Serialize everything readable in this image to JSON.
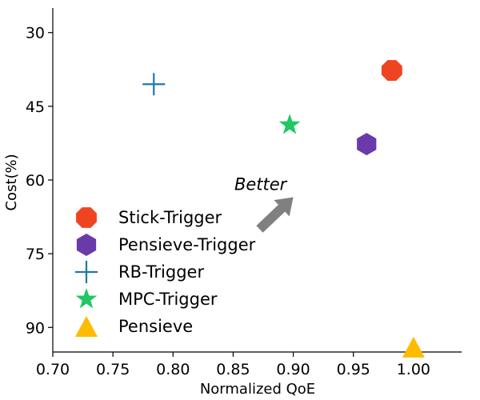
{
  "chart_data": {
    "type": "scatter",
    "xlabel": "Normalized QoE",
    "ylabel": "Cost(%)",
    "xlim": [
      0.7,
      1.04
    ],
    "ylim": [
      95,
      25
    ],
    "y_inverted": true,
    "xticks": [
      "0.70",
      "0.75",
      "0.80",
      "0.85",
      "0.90",
      "0.95",
      "1.00"
    ],
    "yticks": [
      "30",
      "45",
      "60",
      "75",
      "90"
    ],
    "series": [
      {
        "name": "Stick-Trigger",
        "marker": "octagon",
        "color": "#ee4422",
        "x": 0.982,
        "y": 37.7
      },
      {
        "name": "Pensieve-Trigger",
        "marker": "hexagon",
        "color": "#6a3aaa",
        "x": 0.961,
        "y": 52.7
      },
      {
        "name": "RB-Trigger",
        "marker": "plus",
        "color": "#1f77b4",
        "x": 0.784,
        "y": 40.5
      },
      {
        "name": "MPC-Trigger",
        "marker": "star",
        "color": "#1ec864",
        "x": 0.897,
        "y": 48.8
      },
      {
        "name": "Pensieve",
        "marker": "triangle",
        "color": "#ffbb00",
        "x": 1.0,
        "y": 94.0
      }
    ],
    "annotation": {
      "text": "Better",
      "arrow_from": [
        0.872,
        70.0
      ],
      "arrow_to": [
        0.9,
        63.5
      ],
      "text_at": [
        0.851,
        62.0
      ]
    },
    "legend_position": "lower-left",
    "grid": false
  }
}
